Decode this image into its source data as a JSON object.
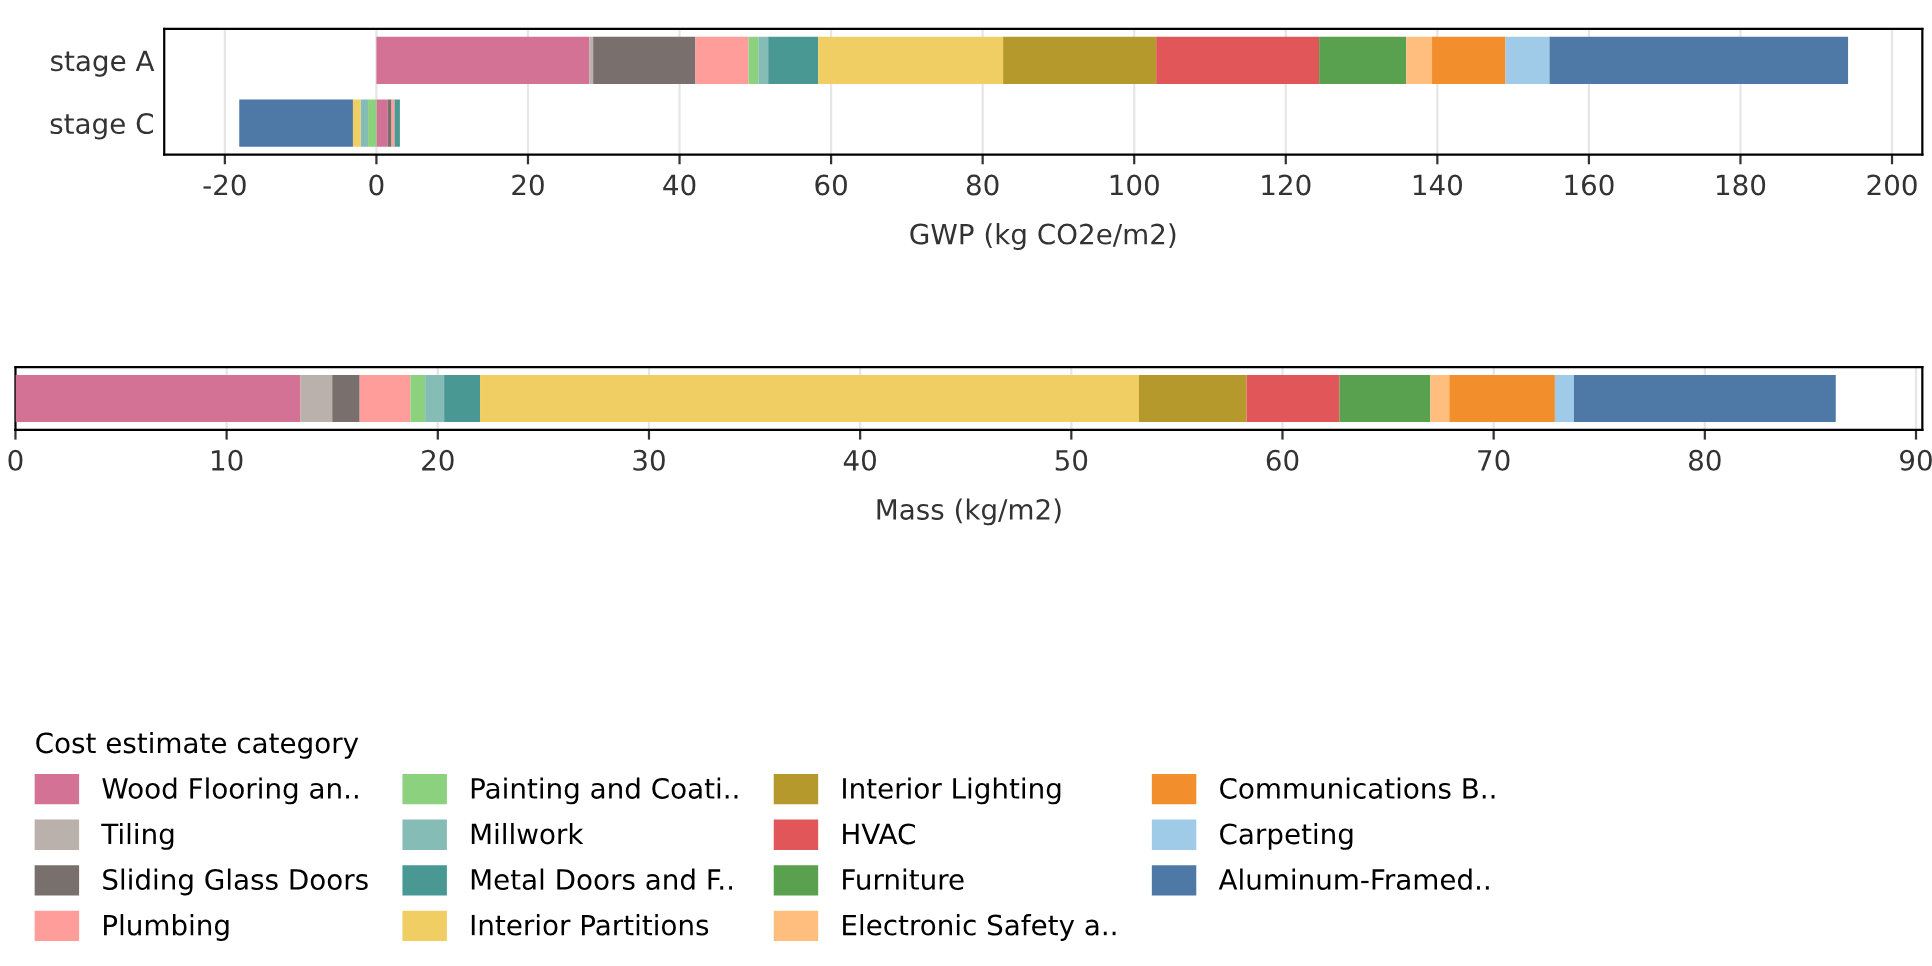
{
  "chart_data": [
    {
      "type": "bar",
      "orientation": "horizontal",
      "stacked": true,
      "xlabel": "GWP (kg CO2e/m2)",
      "categories": [
        "stage A",
        "stage C"
      ],
      "xlim": [
        -28,
        204
      ],
      "xticks": [
        {
          "value": -20,
          "label": "-20"
        },
        0,
        20,
        40,
        60,
        80,
        100,
        120,
        140,
        160,
        180,
        200
      ],
      "grid": "x",
      "legend": "bottom left",
      "legend_title": "Cost estimate category",
      "series": [
        {
          "name": "Wood Flooring an..",
          "color": "#d37295",
          "values": [
            28.1,
            1.5
          ]
        },
        {
          "name": "Tiling",
          "color": "#bab0ac",
          "values": [
            0.5,
            null
          ]
        },
        {
          "name": "Sliding Glass Doors",
          "color": "#79706e",
          "values": [
            13.5,
            0.5
          ]
        },
        {
          "name": "Plumbing",
          "color": "#ff9d9a",
          "values": [
            7.0,
            0.4
          ]
        },
        {
          "name": "Painting and Coati..",
          "color": "#8cd17d",
          "values": [
            1.3,
            -1.1
          ]
        },
        {
          "name": "Millwork",
          "color": "#86bcb6",
          "values": [
            1.3,
            -1.0
          ]
        },
        {
          "name": "Metal Doors and F..",
          "color": "#499894",
          "values": [
            6.6,
            0.7
          ]
        },
        {
          "name": "Interior Partitions",
          "color": "#f1ce63",
          "values": [
            24.4,
            -1.0
          ]
        },
        {
          "name": "Interior Lighting",
          "color": "#b6992d",
          "values": [
            20.2,
            null
          ]
        },
        {
          "name": "HVAC",
          "color": "#e15759",
          "values": [
            21.5,
            null
          ]
        },
        {
          "name": "Furniture",
          "color": "#59a14f",
          "values": [
            11.5,
            null
          ]
        },
        {
          "name": "Electronic Safety a..",
          "color": "#ffbe7d",
          "values": [
            3.4,
            null
          ]
        },
        {
          "name": "Communications B..",
          "color": "#f28e2b",
          "values": [
            9.7,
            null
          ]
        },
        {
          "name": "Carpeting",
          "color": "#a0cbe8",
          "values": [
            5.8,
            null
          ]
        },
        {
          "name": "Aluminum-Framed..",
          "color": "#4e79a7",
          "values": [
            39.4,
            -15.0
          ]
        }
      ]
    },
    {
      "type": "bar",
      "orientation": "horizontal",
      "stacked": true,
      "xlabel": "Mass (kg/m2)",
      "categories": [
        null
      ],
      "xlim": [
        0,
        90.3
      ],
      "xticks": [
        0,
        10,
        20,
        30,
        40,
        50,
        60,
        70,
        80,
        90
      ],
      "grid": "x",
      "series": [
        {
          "color": "#d37295",
          "values": [
            13.5
          ]
        },
        {
          "color": "#bab0ac",
          "values": [
            1.5
          ]
        },
        {
          "color": "#79706e",
          "values": [
            1.3
          ]
        },
        {
          "color": "#ff9d9a",
          "values": [
            2.4
          ]
        },
        {
          "color": "#8cd17d",
          "values": [
            0.7
          ]
        },
        {
          "color": "#86bcb6",
          "values": [
            0.9
          ]
        },
        {
          "color": "#499894",
          "values": [
            1.7
          ]
        },
        {
          "color": "#f1ce63",
          "values": [
            31.2
          ]
        },
        {
          "color": "#b6992d",
          "values": [
            5.1
          ]
        },
        {
          "color": "#e15759",
          "values": [
            4.4
          ]
        },
        {
          "color": "#59a14f",
          "values": [
            4.3
          ]
        },
        {
          "color": "#ffbe7d",
          "values": [
            0.9
          ]
        },
        {
          "color": "#f28e2b",
          "values": [
            5.0
          ]
        },
        {
          "color": "#a0cbe8",
          "values": [
            0.9
          ]
        },
        {
          "color": "#4e79a7",
          "values": [
            12.4
          ]
        }
      ]
    }
  ]
}
